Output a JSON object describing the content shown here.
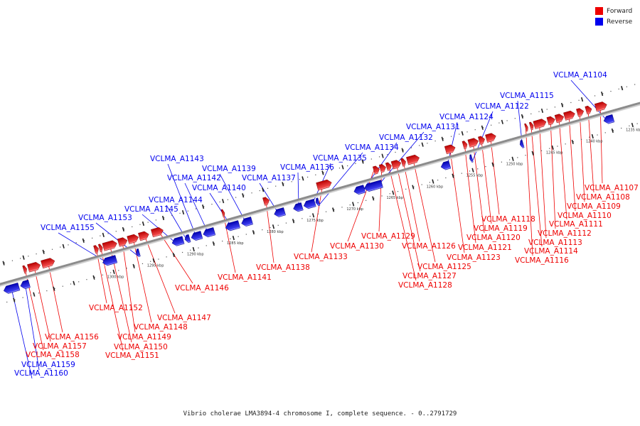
{
  "colors": {
    "forward": "#ee0000",
    "reverse": "#0000ee",
    "axis": "#8c8c8c"
  },
  "legend": [
    {
      "label": "Forward",
      "color": "#ee0000"
    },
    {
      "label": "Reverse",
      "color": "#0000ee"
    }
  ],
  "caption": "Vibrio cholerae LMA3894-4 chromosome I, complete sequence. - 0..2791729",
  "scale_ticks": [
    {
      "kbp": 1235,
      "label": "1235 kbp"
    },
    {
      "kbp": 1240,
      "label": "1240 kbp"
    },
    {
      "kbp": 1245,
      "label": "1245 kbp"
    },
    {
      "kbp": 1250,
      "label": "1250 kbp"
    },
    {
      "kbp": 1255,
      "label": "1255 kbp"
    },
    {
      "kbp": 1260,
      "label": "1260 kbp"
    },
    {
      "kbp": 1265,
      "label": "1265 kbp"
    },
    {
      "kbp": 1270,
      "label": "1270 kbp"
    },
    {
      "kbp": 1275,
      "label": "1275 kbp"
    },
    {
      "kbp": 1280,
      "label": "1280 kbp"
    },
    {
      "kbp": 1285,
      "label": "1285 kbp"
    },
    {
      "kbp": 1290,
      "label": "1290 kbp"
    },
    {
      "kbp": 1295,
      "label": "1295 kbp"
    },
    {
      "kbp": 1300,
      "label": "1300 kbp"
    }
  ],
  "genes": [
    {
      "name": "VCLMA_A1104",
      "strand": "reverse",
      "start_kbp": 1237.0,
      "end_kbp": 1238.2
    },
    {
      "name": "VCLMA_A1107",
      "strand": "forward",
      "start_kbp": 1237.3,
      "end_kbp": 1238.7
    },
    {
      "name": "VCLMA_A1108",
      "strand": "forward",
      "start_kbp": 1239.2,
      "end_kbp": 1239.9
    },
    {
      "name": "VCLMA_A1109",
      "strand": "forward",
      "start_kbp": 1240.2,
      "end_kbp": 1241.0
    },
    {
      "name": "VCLMA_A1110",
      "strand": "forward",
      "start_kbp": 1241.3,
      "end_kbp": 1242.6
    },
    {
      "name": "VCLMA_A1111",
      "strand": "forward",
      "start_kbp": 1242.7,
      "end_kbp": 1243.7
    },
    {
      "name": "VCLMA_A1112",
      "strand": "forward",
      "start_kbp": 1243.8,
      "end_kbp": 1244.7
    },
    {
      "name": "VCLMA_A1113",
      "strand": "forward",
      "start_kbp": 1244.9,
      "end_kbp": 1246.4
    },
    {
      "name": "VCLMA_A1114",
      "strand": "forward",
      "start_kbp": 1246.5,
      "end_kbp": 1246.9
    },
    {
      "name": "VCLMA_A1116",
      "strand": "forward",
      "start_kbp": 1247.2,
      "end_kbp": 1247.5
    },
    {
      "name": "VCLMA_A1115",
      "strand": "reverse",
      "start_kbp": 1248.3,
      "end_kbp": 1248.7
    },
    {
      "name": "VCLMA_A1118",
      "strand": "forward",
      "start_kbp": 1251.2,
      "end_kbp": 1252.4
    },
    {
      "name": "VCLMA_A1119",
      "strand": "forward",
      "start_kbp": 1252.6,
      "end_kbp": 1253.3
    },
    {
      "name": "VCLMA_A1120",
      "strand": "forward",
      "start_kbp": 1253.4,
      "end_kbp": 1254.6
    },
    {
      "name": "VCLMA_A1121",
      "strand": "forward",
      "start_kbp": 1254.8,
      "end_kbp": 1255.3
    },
    {
      "name": "VCLMA_A1122",
      "strand": "reverse",
      "start_kbp": 1254.7,
      "end_kbp": 1255.0
    },
    {
      "name": "VCLMA_A1123",
      "strand": "forward",
      "start_kbp": 1256.3,
      "end_kbp": 1257.5
    },
    {
      "name": "VCLMA_A1124",
      "strand": "reverse",
      "start_kbp": 1257.5,
      "end_kbp": 1258.6
    },
    {
      "name": "VCLMA_A1125",
      "strand": "forward",
      "start_kbp": 1260.8,
      "end_kbp": 1262.3
    },
    {
      "name": "VCLMA_A1126",
      "strand": "forward",
      "start_kbp": 1262.5,
      "end_kbp": 1263.0
    },
    {
      "name": "VCLMA_A1127",
      "strand": "forward",
      "start_kbp": 1263.1,
      "end_kbp": 1264.2
    },
    {
      "name": "VCLMA_A1128",
      "strand": "forward",
      "start_kbp": 1264.3,
      "end_kbp": 1264.9
    },
    {
      "name": "VCLMA_A1129",
      "strand": "forward",
      "start_kbp": 1265.0,
      "end_kbp": 1265.7
    },
    {
      "name": "VCLMA_A1130",
      "strand": "forward",
      "start_kbp": 1265.8,
      "end_kbp": 1266.5
    },
    {
      "name": "VCLMA_A1131",
      "strand": "reverse",
      "start_kbp": 1266.0,
      "end_kbp": 1268.2
    },
    {
      "name": "VCLMA_A1132",
      "strand": "reverse",
      "start_kbp": 1268.2,
      "end_kbp": 1269.5
    },
    {
      "name": "VCLMA_A1133",
      "strand": "forward",
      "start_kbp": 1271.8,
      "end_kbp": 1273.6
    },
    {
      "name": "VCLMA_A1134",
      "strand": "reverse",
      "start_kbp": 1273.9,
      "end_kbp": 1274.3
    },
    {
      "name": "VCLMA_A1135",
      "strand": "reverse",
      "start_kbp": 1274.4,
      "end_kbp": 1275.8
    },
    {
      "name": "VCLMA_A1136",
      "strand": "reverse",
      "start_kbp": 1276.0,
      "end_kbp": 1277.1
    },
    {
      "name": "VCLMA_A1137",
      "strand": "reverse",
      "start_kbp": 1278.2,
      "end_kbp": 1279.5
    },
    {
      "name": "VCLMA_A1138",
      "strand": "forward",
      "start_kbp": 1279.6,
      "end_kbp": 1280.3
    },
    {
      "name": "VCLMA_A1139",
      "strand": "reverse",
      "start_kbp": 1282.3,
      "end_kbp": 1283.6
    },
    {
      "name": "VCLMA_A1140",
      "strand": "reverse",
      "start_kbp": 1283.9,
      "end_kbp": 1285.6
    },
    {
      "name": "VCLMA_A1141",
      "strand": "forward",
      "start_kbp": 1285.2,
      "end_kbp": 1285.5
    },
    {
      "name": "VCLMA_A1142",
      "strand": "reverse",
      "start_kbp": 1287.0,
      "end_kbp": 1288.4
    },
    {
      "name": "VCLMA_A1143",
      "strand": "reverse",
      "start_kbp": 1288.6,
      "end_kbp": 1289.9
    },
    {
      "name": "VCLMA_A1144",
      "strand": "reverse",
      "start_kbp": 1290.1,
      "end_kbp": 1290.7
    },
    {
      "name": "VCLMA_A1145",
      "strand": "reverse",
      "start_kbp": 1290.9,
      "end_kbp": 1292.3
    },
    {
      "name": "VCLMA_A1146",
      "strand": "forward",
      "start_kbp": 1292.9,
      "end_kbp": 1294.3
    },
    {
      "name": "VCLMA_A1147",
      "strand": "forward",
      "start_kbp": 1294.7,
      "end_kbp": 1295.9
    },
    {
      "name": "VCLMA_A1148",
      "strand": "forward",
      "start_kbp": 1296.0,
      "end_kbp": 1297.3
    },
    {
      "name": "VCLMA_A1149",
      "strand": "forward",
      "start_kbp": 1297.4,
      "end_kbp": 1298.5
    },
    {
      "name": "VCLMA_A1150",
      "strand": "forward",
      "start_kbp": 1298.7,
      "end_kbp": 1300.4
    },
    {
      "name": "VCLMA_A1151",
      "strand": "forward",
      "start_kbp": 1300.5,
      "end_kbp": 1300.9
    },
    {
      "name": "VCLMA_A1152",
      "strand": "forward",
      "start_kbp": 1301.0,
      "end_kbp": 1301.5
    },
    {
      "name": "VCLMA_A1153",
      "strand": "reverse",
      "start_kbp": 1296.4,
      "end_kbp": 1296.8
    },
    {
      "name": "VCLMA_A1155",
      "strand": "reverse",
      "start_kbp": 1299.3,
      "end_kbp": 1301.0
    },
    {
      "name": "VCLMA_A1156",
      "strand": "forward",
      "start_kbp": 1306.5,
      "end_kbp": 1308.1
    },
    {
      "name": "VCLMA_A1157",
      "strand": "forward",
      "start_kbp": 1308.3,
      "end_kbp": 1309.8
    },
    {
      "name": "VCLMA_A1158",
      "strand": "forward",
      "start_kbp": 1310.0,
      "end_kbp": 1310.4
    },
    {
      "name": "VCLMA_A1159",
      "strand": "reverse",
      "start_kbp": 1310.2,
      "end_kbp": 1311.3
    },
    {
      "name": "VCLMA_A1160",
      "strand": "reverse",
      "start_kbp": 1311.5,
      "end_kbp": 1313.4
    }
  ]
}
